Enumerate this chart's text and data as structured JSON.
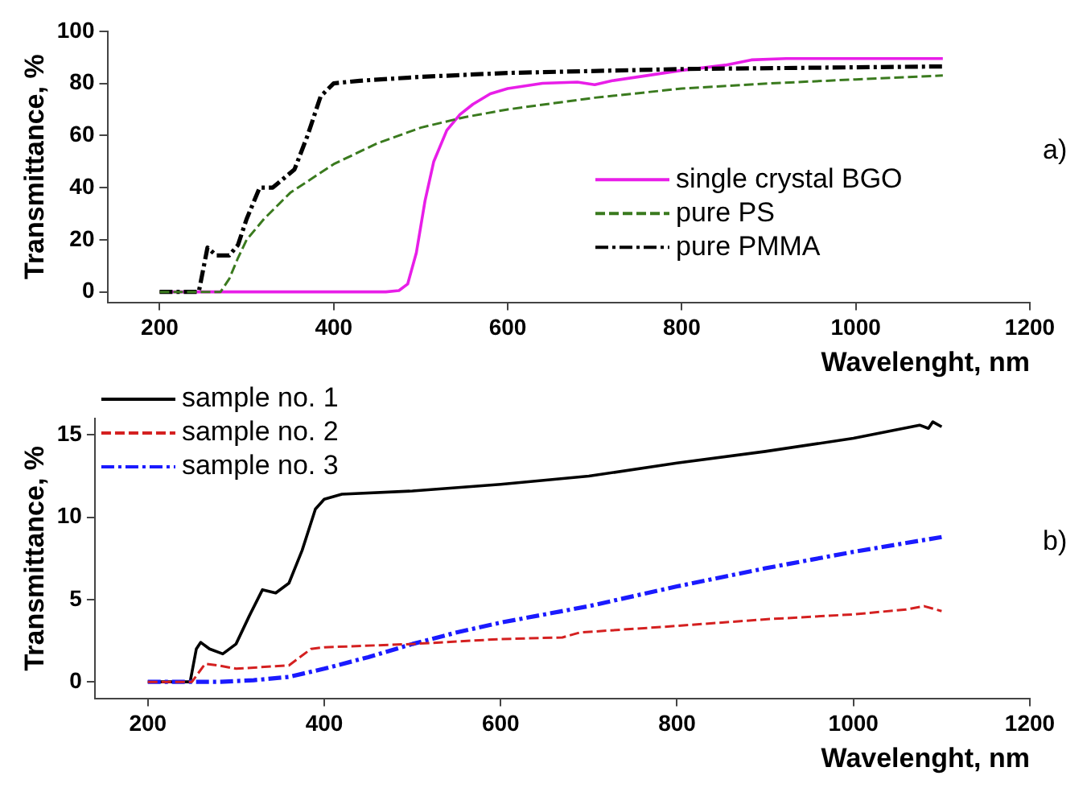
{
  "chart_data": [
    {
      "type": "line",
      "xlabel": "Wavelenght, nm",
      "ylabel": "Transmittance, %",
      "xlim": [
        140,
        1200
      ],
      "xticks": [
        200,
        400,
        600,
        800,
        1000,
        1200
      ],
      "ylim": [
        -4,
        100
      ],
      "yticks": [
        0,
        20,
        40,
        60,
        80,
        100
      ],
      "grid": false,
      "legend": "right",
      "marker": "none",
      "annotations": [
        "a)"
      ],
      "series": [
        {
          "name": "single crystal BGO",
          "color": "#e81ee8",
          "line_style": "solid",
          "x": [
            200,
            460,
            475,
            485,
            495,
            505,
            515,
            530,
            545,
            560,
            580,
            600,
            640,
            680,
            700,
            720,
            760,
            800,
            850,
            880,
            920,
            1000,
            1100
          ],
          "values": [
            0,
            0,
            0.5,
            3,
            15,
            35,
            50,
            62,
            68,
            72,
            76,
            78,
            80,
            80.5,
            79.5,
            81,
            83,
            85,
            87,
            89,
            89.5,
            89.5,
            89.5
          ]
        },
        {
          "name": "pure PS",
          "color": "#3a7a1e",
          "line_style": "dashed",
          "x": [
            200,
            270,
            280,
            290,
            300,
            320,
            350,
            400,
            450,
            500,
            550,
            600,
            700,
            800,
            900,
            1000,
            1100
          ],
          "values": [
            0,
            0,
            5,
            13,
            20,
            28,
            38,
            49,
            57,
            63,
            67,
            70,
            74.5,
            78,
            80,
            81.5,
            83
          ]
        },
        {
          "name": "pure PMMA",
          "color": "#000000",
          "line_style": "dashdot",
          "x": [
            200,
            245,
            255,
            265,
            280,
            290,
            300,
            315,
            330,
            355,
            370,
            385,
            400,
            430,
            500,
            600,
            800,
            1100
          ],
          "values": [
            0,
            0,
            17,
            14,
            14,
            18,
            28,
            40,
            40,
            47,
            60,
            75,
            80,
            81,
            82.5,
            84,
            85.5,
            86.5
          ]
        }
      ]
    },
    {
      "type": "line",
      "xlabel": "Wavelenght, nm",
      "ylabel": "Transmittance, %",
      "xlim": [
        140,
        1200
      ],
      "xticks": [
        200,
        400,
        600,
        800,
        1000,
        1200
      ],
      "ylim": [
        -1,
        16
      ],
      "yticks": [
        0,
        5,
        10,
        15
      ],
      "grid": false,
      "legend": "top left",
      "marker": "none",
      "annotations": [
        "b)"
      ],
      "series": [
        {
          "name": "sample no. 1",
          "color": "#000000",
          "line_style": "solid",
          "x": [
            200,
            248,
            255,
            260,
            270,
            285,
            300,
            315,
            330,
            345,
            360,
            375,
            390,
            400,
            420,
            500,
            600,
            700,
            800,
            900,
            1000,
            1075,
            1085,
            1090,
            1100
          ],
          "values": [
            0,
            0,
            2,
            2.4,
            2,
            1.7,
            2.3,
            4,
            5.6,
            5.4,
            6,
            8,
            10.5,
            11.1,
            11.4,
            11.6,
            12,
            12.5,
            13.3,
            14,
            14.8,
            15.6,
            15.4,
            15.8,
            15.5
          ]
        },
        {
          "name": "sample no. 2",
          "color": "#d42020",
          "line_style": "dashed",
          "x": [
            200,
            250,
            265,
            280,
            300,
            360,
            385,
            400,
            500,
            600,
            670,
            690,
            800,
            900,
            1000,
            1060,
            1080,
            1100
          ],
          "values": [
            0,
            0,
            1.1,
            1,
            0.8,
            1,
            2,
            2.1,
            2.3,
            2.6,
            2.7,
            3,
            3.4,
            3.8,
            4.1,
            4.4,
            4.6,
            4.3
          ]
        },
        {
          "name": "sample no. 3",
          "color": "#1a1aff",
          "line_style": "dashdot",
          "x": [
            200,
            280,
            320,
            360,
            400,
            450,
            500,
            550,
            600,
            700,
            800,
            900,
            1000,
            1100
          ],
          "values": [
            0,
            0,
            0.1,
            0.3,
            0.8,
            1.5,
            2.3,
            3,
            3.6,
            4.6,
            5.8,
            6.9,
            7.9,
            8.8
          ]
        }
      ]
    }
  ]
}
